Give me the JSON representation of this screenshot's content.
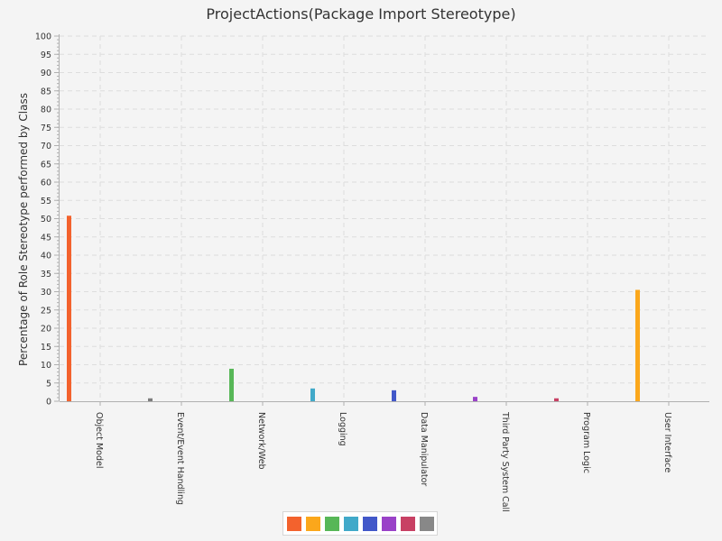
{
  "title": "ProjectActions(Package Import Stereotype)",
  "colors": {
    "background": "#f4f4f4",
    "grid": "#dddddd",
    "axis": "#b0b0b0"
  },
  "chart_data": {
    "type": "bar",
    "title": "ProjectActions(Package Import Stereotype)",
    "xlabel": "",
    "ylabel": "Percentage of Role Stereotype performed by Class",
    "ylim": [
      0,
      100
    ],
    "y_major_step": 5,
    "y_minor_step": 1,
    "grid": true,
    "legend_position": "bottom-center",
    "categories": [
      "Object Model",
      "Event/Event Handling",
      "Network/Web",
      "Logging",
      "Data Manipulator",
      "Third Party System Call",
      "Program Logic",
      "User Interface"
    ],
    "values": [
      50.8,
      0.8,
      8.9,
      3.5,
      3.0,
      1.2,
      0.8,
      30.5
    ],
    "bar_colors": [
      "#f3622d",
      "#7d7d7d",
      "#57b757",
      "#41a9c9",
      "#4258c9",
      "#9a42c8",
      "#c84164",
      "#fba71b"
    ],
    "legend_colors": [
      "#f3622d",
      "#fba71b",
      "#57b757",
      "#41a9c9",
      "#4258c9",
      "#9a42c8",
      "#c84164",
      "#888888"
    ]
  }
}
